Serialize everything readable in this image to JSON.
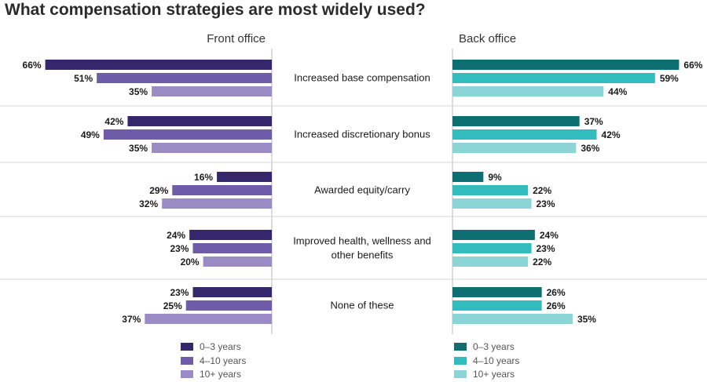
{
  "title": "What compensation strategies are most widely used?",
  "chart_data": {
    "type": "bar",
    "orientation": "horizontal",
    "categories": [
      "Increased base compensation",
      "Increased discretionary bonus",
      "Awarded equity/carry",
      "Improved health, wellness and other benefits",
      "None of these"
    ],
    "category_lines": [
      [
        "Increased base compensation"
      ],
      [
        "Increased discretionary bonus"
      ],
      [
        "Awarded equity/carry"
      ],
      [
        "Improved health, wellness and",
        "other benefits"
      ],
      [
        "None of these"
      ]
    ],
    "unit": "%",
    "panels": [
      {
        "title": "Front office",
        "direction": "left",
        "series": [
          {
            "name": "0–3 years",
            "color": "#35276b",
            "values": [
              66,
              42,
              16,
              24,
              23
            ]
          },
          {
            "name": "4–10 years",
            "color": "#6e5ca9",
            "values": [
              51,
              49,
              29,
              23,
              25
            ]
          },
          {
            "name": "10+ years",
            "color": "#9b8bc4",
            "values": [
              35,
              35,
              32,
              20,
              37
            ]
          }
        ]
      },
      {
        "title": "Back office",
        "direction": "right",
        "series": [
          {
            "name": "0–3 years",
            "color": "#0e6f72",
            "values": [
              66,
              37,
              9,
              24,
              26
            ]
          },
          {
            "name": "4–10 years",
            "color": "#33bcbe",
            "values": [
              59,
              42,
              22,
              23,
              26
            ]
          },
          {
            "name": "10+ years",
            "color": "#8cd5d6",
            "values": [
              44,
              36,
              23,
              22,
              35
            ]
          }
        ]
      }
    ],
    "grid": false,
    "legend": "bottom"
  }
}
